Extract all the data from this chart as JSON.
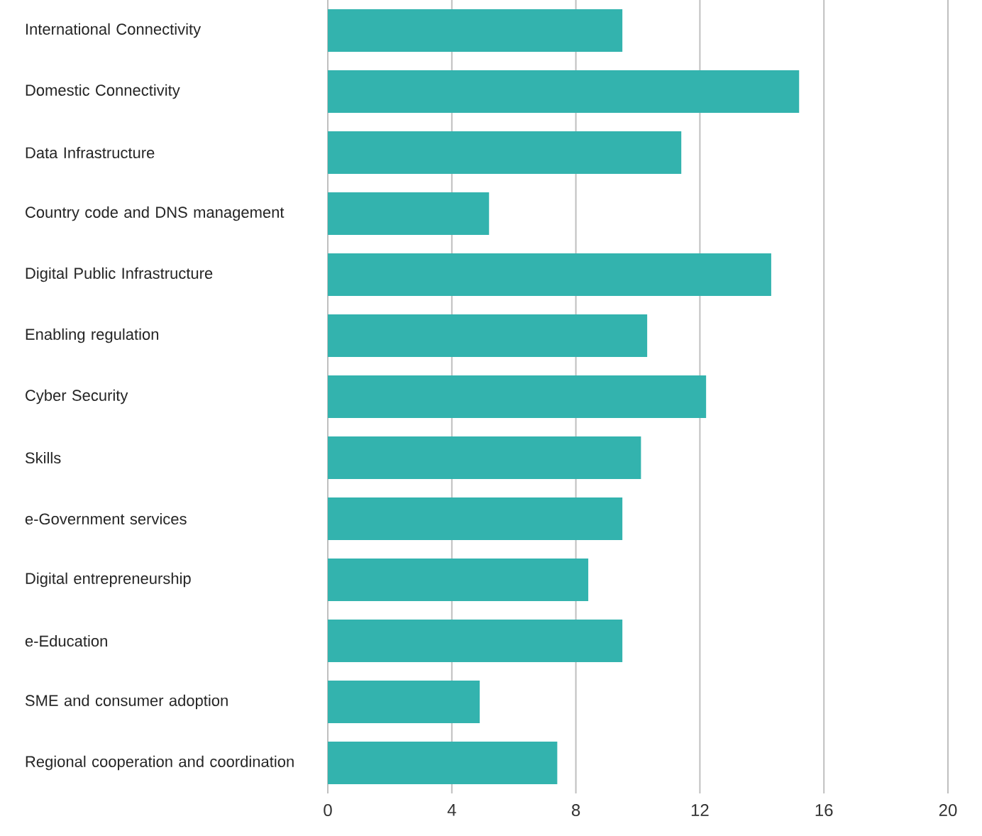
{
  "chart_data": {
    "type": "bar",
    "orientation": "horizontal",
    "categories": [
      "International Connectivity",
      "Domestic Connectivity",
      "Data Infrastructure",
      "Country code and DNS management",
      "Digital Public Infrastructure",
      "Enabling regulation",
      "Cyber Security",
      "Skills",
      "e-Government services",
      "Digital entrepreneurship",
      "e-Education",
      "SME and consumer adoption",
      "Regional cooperation and coordination"
    ],
    "values": [
      9.5,
      15.2,
      11.4,
      5.2,
      14.3,
      10.3,
      12.2,
      10.1,
      9.5,
      8.4,
      9.5,
      4.9,
      7.4
    ],
    "color": "#33b3ae",
    "xlim": [
      0,
      20
    ],
    "xticks": [
      0,
      4,
      8,
      12,
      16,
      20
    ],
    "grid": "x"
  }
}
